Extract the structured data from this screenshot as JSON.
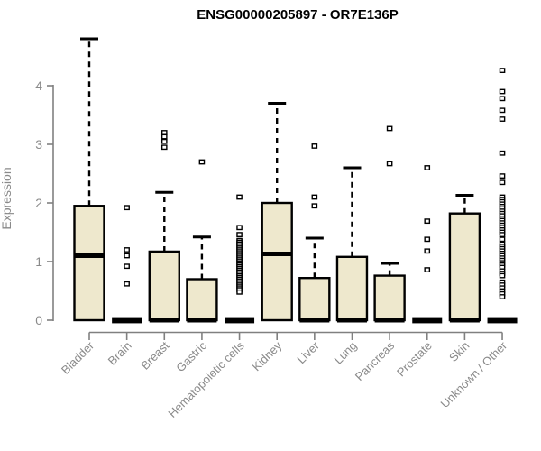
{
  "chart_data": {
    "type": "boxplot",
    "title": "ENSG00000205897 - OR7E136P",
    "ylabel": "Expression",
    "xlabel": "",
    "yticks": [
      0,
      1,
      2,
      3,
      4
    ],
    "ylim": [
      0,
      4.9
    ],
    "grid": false,
    "legend": null,
    "colors": {
      "box_fill": "#EEE8CD",
      "box_line": "#000000",
      "axis": "#808080",
      "tick_label": "#8a8a8a",
      "title": "#000000"
    },
    "categories": [
      "Bladder",
      "Brain",
      "Breast",
      "Gastric",
      "Hematopoietic cells",
      "Kidney",
      "Liver",
      "Lung",
      "Pancreas",
      "Prostate",
      "Skin",
      "Unknown / Other"
    ],
    "boxes": [
      {
        "category": "Bladder",
        "q1": 0,
        "median": 1.1,
        "q3": 1.95,
        "whisker_low": 0,
        "whisker_high": 4.8,
        "outliers": []
      },
      {
        "category": "Brain",
        "q1": 0,
        "median": 0,
        "q3": 0,
        "whisker_low": 0,
        "whisker_high": 0,
        "outliers": [
          1.92,
          1.2,
          1.1,
          0.92,
          0.62
        ]
      },
      {
        "category": "Breast",
        "q1": 0,
        "median": 0,
        "q3": 1.17,
        "whisker_low": 0,
        "whisker_high": 2.18,
        "outliers": [
          3.2,
          3.13,
          3.05,
          2.95
        ]
      },
      {
        "category": "Gastric",
        "q1": 0,
        "median": 0,
        "q3": 0.7,
        "whisker_low": 0,
        "whisker_high": 1.42,
        "outliers": [
          2.7
        ]
      },
      {
        "category": "Hematopoietic cells",
        "q1": 0,
        "median": 0,
        "q3": 0,
        "whisker_low": 0,
        "whisker_high": 0,
        "outliers": [
          2.1,
          1.58,
          1.46,
          1.36,
          1.33,
          1.3,
          1.27,
          1.24,
          1.21,
          1.18,
          1.15,
          1.12,
          1.09,
          1.06,
          1.03,
          1.0,
          0.97,
          0.94,
          0.91,
          0.88,
          0.85,
          0.82,
          0.79,
          0.76,
          0.73,
          0.7,
          0.67,
          0.64,
          0.61,
          0.58,
          0.55,
          0.52,
          0.48
        ]
      },
      {
        "category": "Kidney",
        "q1": 0,
        "median": 1.13,
        "q3": 2.0,
        "whisker_low": 0,
        "whisker_high": 3.7,
        "outliers": []
      },
      {
        "category": "Liver",
        "q1": 0,
        "median": 0,
        "q3": 0.72,
        "whisker_low": 0,
        "whisker_high": 1.4,
        "outliers": [
          2.97,
          2.1,
          1.95
        ]
      },
      {
        "category": "Lung",
        "q1": 0,
        "median": 0,
        "q3": 1.08,
        "whisker_low": 0,
        "whisker_high": 2.6,
        "outliers": []
      },
      {
        "category": "Pancreas",
        "q1": 0,
        "median": 0,
        "q3": 0.76,
        "whisker_low": 0,
        "whisker_high": 0.97,
        "outliers": [
          3.27,
          2.67
        ]
      },
      {
        "category": "Prostate",
        "q1": 0,
        "median": 0,
        "q3": 0,
        "whisker_low": 0,
        "whisker_high": 0,
        "outliers": [
          2.6,
          1.69,
          1.38,
          1.18,
          0.86
        ]
      },
      {
        "category": "Skin",
        "q1": 0,
        "median": 0,
        "q3": 1.82,
        "whisker_low": 0,
        "whisker_high": 2.13,
        "outliers": []
      },
      {
        "category": "Unknown / Other",
        "q1": 0,
        "median": 0,
        "q3": 0,
        "whisker_low": 0,
        "whisker_high": 0,
        "outliers": [
          4.26,
          3.9,
          3.78,
          3.58,
          3.43,
          2.85,
          2.46,
          2.35,
          2.1,
          2.06,
          2.02,
          1.98,
          1.94,
          1.9,
          1.86,
          1.82,
          1.78,
          1.74,
          1.7,
          1.66,
          1.62,
          1.58,
          1.54,
          1.5,
          1.46,
          1.38,
          1.3,
          1.26,
          1.22,
          1.18,
          1.14,
          1.1,
          1.06,
          1.02,
          0.98,
          0.94,
          0.9,
          0.84,
          0.8,
          0.76,
          0.65,
          0.6,
          0.55,
          0.5,
          0.45,
          0.4
        ]
      }
    ]
  }
}
